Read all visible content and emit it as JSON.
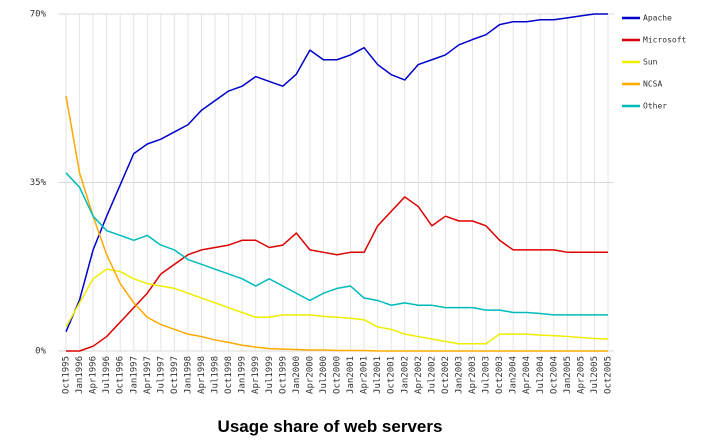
{
  "chart_data": {
    "type": "line",
    "title": "Usage share of web servers",
    "categories": [
      "Oct1995",
      "Jan1996",
      "Apr1996",
      "Jul1996",
      "Oct1996",
      "Jan1997",
      "Apr1997",
      "Jul1997",
      "Oct1997",
      "Jan1998",
      "Apr1998",
      "Jul1998",
      "Oct1998",
      "Jan1999",
      "Apr1999",
      "Jul1999",
      "Oct1999",
      "Jan2000",
      "Apr2000",
      "Jul2000",
      "Oct2000",
      "Jan2001",
      "Apr2001",
      "Jul2001",
      "Oct2001",
      "Jan2002",
      "Apr2002",
      "Jul2002",
      "Oct2002",
      "Jan2003",
      "Apr2003",
      "Jul2003",
      "Oct2003",
      "Jan2004",
      "Apr2004",
      "Jul2004",
      "Oct2004",
      "Jan2005",
      "Apr2005",
      "Jul2005",
      "Oct2005"
    ],
    "series": [
      {
        "name": "Apache",
        "color": "#0000cc",
        "values": [
          4,
          10.6,
          21,
          28,
          34.5,
          41,
          43,
          44,
          45.5,
          47,
          50,
          52,
          54,
          55,
          57,
          56,
          55,
          57.5,
          62.5,
          60.5,
          60.5,
          61.5,
          63,
          59.5,
          57.4,
          56.3,
          59.5,
          60.5,
          61.5,
          63.6,
          64.7,
          65.7,
          67.8,
          68.4,
          68.4,
          68.8,
          68.8,
          69.2,
          69.6,
          70,
          70
        ]
      },
      {
        "name": "Microsoft",
        "color": "#dd0000",
        "values": [
          0,
          0,
          1,
          3,
          6,
          9,
          12,
          16,
          18,
          20,
          21,
          21.5,
          22,
          23,
          23,
          21.5,
          22,
          24.5,
          21,
          20.5,
          20,
          20.5,
          20.5,
          26,
          29,
          32,
          30,
          26,
          28,
          27,
          27,
          26,
          23,
          21,
          21,
          21,
          21,
          20.5,
          20.5,
          20.5,
          20.5
        ]
      },
      {
        "name": "Sun",
        "color": "#eeee00",
        "values": [
          5,
          10,
          15,
          17,
          16.5,
          15,
          14,
          13.5,
          13,
          12,
          11,
          10,
          9,
          8,
          7,
          7,
          7.5,
          7.5,
          7.5,
          7.2,
          7,
          6.8,
          6.5,
          5,
          4.5,
          3.5,
          3,
          2.5,
          2,
          1.5,
          1.5,
          1.5,
          3.5,
          3.5,
          3.5,
          3.3,
          3.2,
          3,
          2.8,
          2.6,
          2.5
        ]
      },
      {
        "name": "NCSA",
        "color": "#ffaa00",
        "values": [
          53,
          37,
          28,
          20,
          14,
          10,
          7,
          5.5,
          4.5,
          3.5,
          3,
          2.3,
          1.8,
          1.2,
          0.8,
          0.5,
          0.4,
          0.3,
          0.2,
          0.2,
          0.1,
          0.1,
          0.1,
          0,
          0,
          0,
          0,
          0,
          0,
          0,
          0,
          0,
          0,
          0,
          0,
          0,
          0,
          0,
          0,
          0,
          0
        ]
      },
      {
        "name": "Other",
        "color": "#00bbbb",
        "values": [
          37,
          34,
          28,
          25,
          24,
          23,
          24,
          22,
          21,
          19,
          18,
          17,
          16,
          15,
          13.5,
          15,
          13.5,
          12,
          10.5,
          12,
          13,
          13.5,
          11,
          10.5,
          9.5,
          10,
          9.5,
          9.5,
          9,
          9,
          9,
          8.5,
          8.5,
          8,
          8,
          7.8,
          7.5,
          7.5,
          7.5,
          7.5,
          7.5
        ]
      }
    ],
    "ylim": [
      0,
      70
    ],
    "yticks": [
      {
        "value": 0,
        "label": "0%"
      },
      {
        "value": 35,
        "label": "35%"
      },
      {
        "value": 70,
        "label": "70%"
      }
    ],
    "grid": true,
    "legend": "right"
  }
}
